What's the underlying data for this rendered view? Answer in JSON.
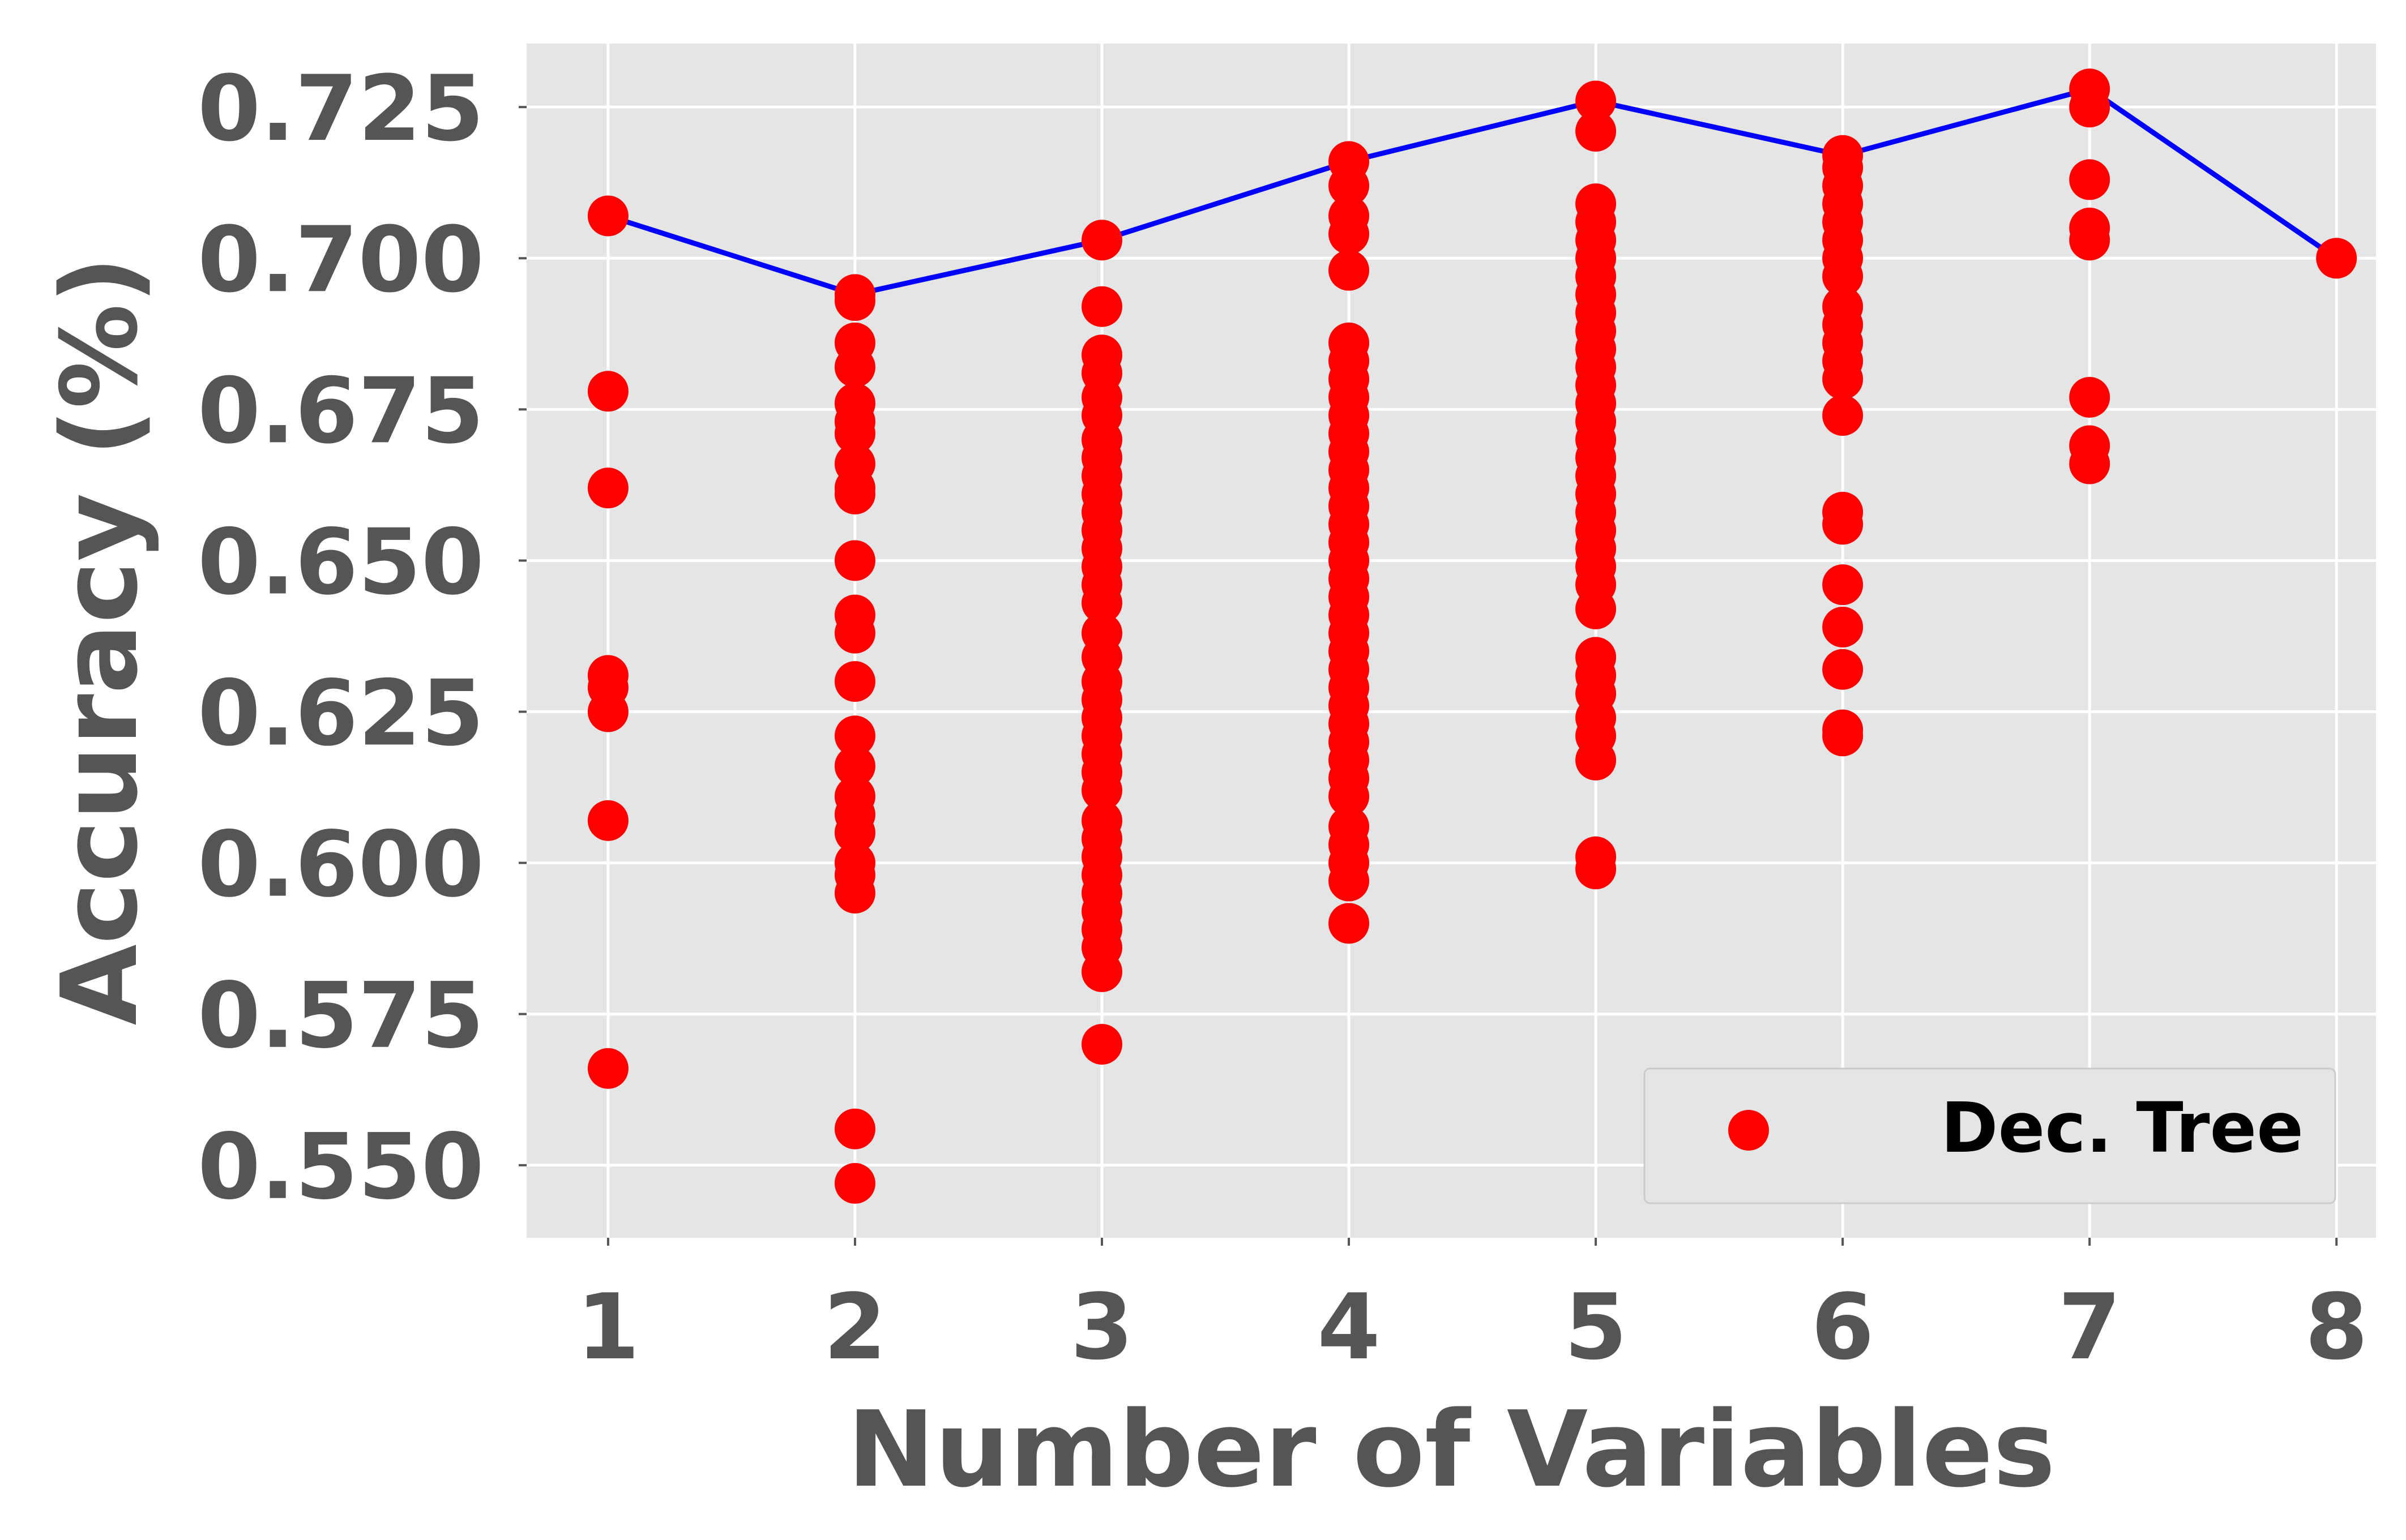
{
  "chart_data": {
    "type": "scatter",
    "title": "",
    "xlabel": "Number of Variables",
    "ylabel": "Accuracy (%)",
    "xlim": [
      0.67,
      8.16
    ],
    "ylim": [
      0.538,
      0.7355
    ],
    "xticks": [
      1,
      2,
      3,
      4,
      5,
      6,
      7,
      8
    ],
    "xtick_labels": [
      "1",
      "2",
      "3",
      "4",
      "5",
      "6",
      "7",
      "8"
    ],
    "yticks": [
      0.55,
      0.575,
      0.6,
      0.625,
      0.65,
      0.675,
      0.7,
      0.725
    ],
    "ytick_labels": [
      "0.550",
      "0.575",
      "0.600",
      "0.625",
      "0.650",
      "0.675",
      "0.700",
      "0.725"
    ],
    "grid": true,
    "legend_position": "lower-right",
    "colors": {
      "scatter": "#ff0000",
      "line": "#0000ff",
      "plot_background": "#e5e5e5",
      "grid": "#ffffff",
      "text": "#555555"
    },
    "series": [
      {
        "name": "Dec. Tree",
        "type": "scatter",
        "points": [
          [
            1,
            0.707
          ],
          [
            1,
            0.678
          ],
          [
            1,
            0.662
          ],
          [
            1,
            0.631
          ],
          [
            1,
            0.629
          ],
          [
            1,
            0.625
          ],
          [
            1,
            0.607
          ],
          [
            1,
            0.566
          ],
          [
            2,
            0.694
          ],
          [
            2,
            0.693
          ],
          [
            2,
            0.686
          ],
          [
            2,
            0.682
          ],
          [
            2,
            0.676
          ],
          [
            2,
            0.673
          ],
          [
            2,
            0.671
          ],
          [
            2,
            0.666
          ],
          [
            2,
            0.662
          ],
          [
            2,
            0.661
          ],
          [
            2,
            0.65
          ],
          [
            2,
            0.641
          ],
          [
            2,
            0.638
          ],
          [
            2,
            0.63
          ],
          [
            2,
            0.621
          ],
          [
            2,
            0.616
          ],
          [
            2,
            0.611
          ],
          [
            2,
            0.608
          ],
          [
            2,
            0.605
          ],
          [
            2,
            0.6
          ],
          [
            2,
            0.598
          ],
          [
            2,
            0.595
          ],
          [
            2,
            0.556
          ],
          [
            2,
            0.547
          ],
          [
            3,
            0.703
          ],
          [
            3,
            0.692
          ],
          [
            3,
            0.684
          ],
          [
            3,
            0.681
          ],
          [
            3,
            0.677
          ],
          [
            3,
            0.674
          ],
          [
            3,
            0.67
          ],
          [
            3,
            0.667
          ],
          [
            3,
            0.664
          ],
          [
            3,
            0.661
          ],
          [
            3,
            0.658
          ],
          [
            3,
            0.655
          ],
          [
            3,
            0.652
          ],
          [
            3,
            0.649
          ],
          [
            3,
            0.646
          ],
          [
            3,
            0.643
          ],
          [
            3,
            0.638
          ],
          [
            3,
            0.634
          ],
          [
            3,
            0.63
          ],
          [
            3,
            0.627
          ],
          [
            3,
            0.624
          ],
          [
            3,
            0.621
          ],
          [
            3,
            0.618
          ],
          [
            3,
            0.615
          ],
          [
            3,
            0.612
          ],
          [
            3,
            0.607
          ],
          [
            3,
            0.604
          ],
          [
            3,
            0.601
          ],
          [
            3,
            0.598
          ],
          [
            3,
            0.595
          ],
          [
            3,
            0.592
          ],
          [
            3,
            0.589
          ],
          [
            3,
            0.586
          ],
          [
            3,
            0.582
          ],
          [
            3,
            0.57
          ],
          [
            4,
            0.716
          ],
          [
            4,
            0.712
          ],
          [
            4,
            0.707
          ],
          [
            4,
            0.704
          ],
          [
            4,
            0.698
          ],
          [
            4,
            0.686
          ],
          [
            4,
            0.683
          ],
          [
            4,
            0.68
          ],
          [
            4,
            0.677
          ],
          [
            4,
            0.674
          ],
          [
            4,
            0.671
          ],
          [
            4,
            0.668
          ],
          [
            4,
            0.665
          ],
          [
            4,
            0.662
          ],
          [
            4,
            0.659
          ],
          [
            4,
            0.656
          ],
          [
            4,
            0.653
          ],
          [
            4,
            0.65
          ],
          [
            4,
            0.647
          ],
          [
            4,
            0.644
          ],
          [
            4,
            0.641
          ],
          [
            4,
            0.638
          ],
          [
            4,
            0.635
          ],
          [
            4,
            0.632
          ],
          [
            4,
            0.629
          ],
          [
            4,
            0.626
          ],
          [
            4,
            0.623
          ],
          [
            4,
            0.62
          ],
          [
            4,
            0.617
          ],
          [
            4,
            0.614
          ],
          [
            4,
            0.611
          ],
          [
            4,
            0.606
          ],
          [
            4,
            0.603
          ],
          [
            4,
            0.6
          ],
          [
            4,
            0.597
          ],
          [
            4,
            0.59
          ],
          [
            5,
            0.726
          ],
          [
            5,
            0.721
          ],
          [
            5,
            0.709
          ],
          [
            5,
            0.706
          ],
          [
            5,
            0.703
          ],
          [
            5,
            0.7
          ],
          [
            5,
            0.697
          ],
          [
            5,
            0.694
          ],
          [
            5,
            0.691
          ],
          [
            5,
            0.688
          ],
          [
            5,
            0.685
          ],
          [
            5,
            0.682
          ],
          [
            5,
            0.679
          ],
          [
            5,
            0.676
          ],
          [
            5,
            0.673
          ],
          [
            5,
            0.67
          ],
          [
            5,
            0.667
          ],
          [
            5,
            0.664
          ],
          [
            5,
            0.661
          ],
          [
            5,
            0.658
          ],
          [
            5,
            0.655
          ],
          [
            5,
            0.652
          ],
          [
            5,
            0.649
          ],
          [
            5,
            0.646
          ],
          [
            5,
            0.642
          ],
          [
            5,
            0.634
          ],
          [
            5,
            0.631
          ],
          [
            5,
            0.628
          ],
          [
            5,
            0.624
          ],
          [
            5,
            0.621
          ],
          [
            5,
            0.617
          ],
          [
            5,
            0.601
          ],
          [
            5,
            0.599
          ],
          [
            6,
            0.717
          ],
          [
            6,
            0.715
          ],
          [
            6,
            0.712
          ],
          [
            6,
            0.709
          ],
          [
            6,
            0.706
          ],
          [
            6,
            0.703
          ],
          [
            6,
            0.7
          ],
          [
            6,
            0.697
          ],
          [
            6,
            0.692
          ],
          [
            6,
            0.689
          ],
          [
            6,
            0.686
          ],
          [
            6,
            0.683
          ],
          [
            6,
            0.68
          ],
          [
            6,
            0.674
          ],
          [
            6,
            0.658
          ],
          [
            6,
            0.656
          ],
          [
            6,
            0.646
          ],
          [
            6,
            0.639
          ],
          [
            6,
            0.632
          ],
          [
            6,
            0.622
          ],
          [
            6,
            0.621
          ],
          [
            7,
            0.728
          ],
          [
            7,
            0.725
          ],
          [
            7,
            0.713
          ],
          [
            7,
            0.705
          ],
          [
            7,
            0.703
          ],
          [
            7,
            0.677
          ],
          [
            7,
            0.669
          ],
          [
            7,
            0.666
          ],
          [
            8,
            0.7
          ]
        ]
      },
      {
        "name": "",
        "type": "line",
        "x": [
          1,
          2,
          3,
          4,
          5,
          6,
          7,
          8
        ],
        "y": [
          0.707,
          0.694,
          0.703,
          0.716,
          0.726,
          0.717,
          0.728,
          0.7
        ]
      }
    ]
  }
}
